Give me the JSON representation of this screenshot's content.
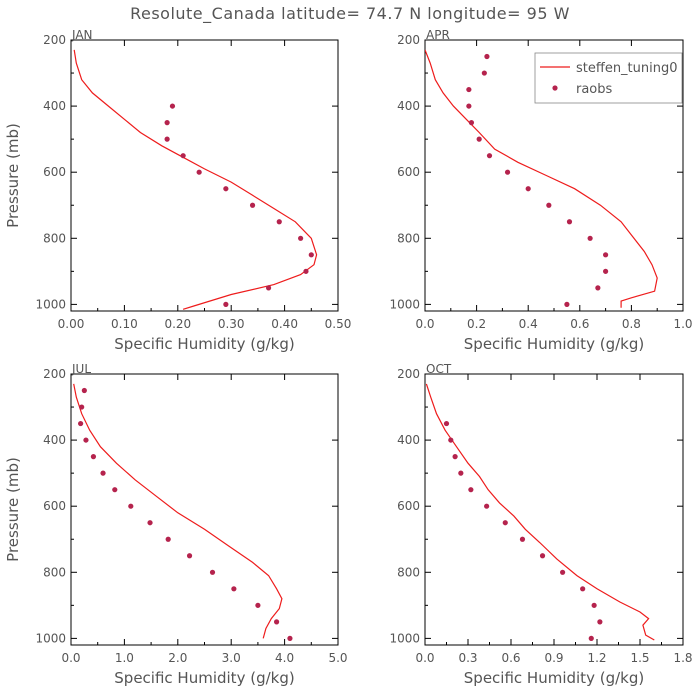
{
  "figure": {
    "title": "Resolute_Canada  latitude= 74.7 N longitude= 95 W"
  },
  "colors": {
    "model": "#ee1c1c",
    "obs": "#b5234d",
    "axis": "#000000",
    "text": "#555555"
  },
  "legend": {
    "model_label": "steffen_tuning0",
    "obs_label": "raobs",
    "placement": "top-right of APR panel"
  },
  "chart_data": [
    {
      "type": "line",
      "panel": "JAN",
      "title": "JAN",
      "xlabel": "Specific Humidity (g/kg)",
      "ylabel": "Pressure (mb)",
      "xlim": [
        0,
        0.5
      ],
      "ylim": [
        1020,
        200
      ],
      "xticks": [
        "0.00",
        "0.10",
        "0.20",
        "0.30",
        "0.40",
        "0.50"
      ],
      "xtick_values": [
        0,
        0.1,
        0.2,
        0.3,
        0.4,
        0.5
      ],
      "yticks": [
        "200",
        "400",
        "600",
        "800",
        "1000"
      ],
      "ytick_values": [
        200,
        400,
        600,
        800,
        1000
      ],
      "series": [
        {
          "name": "steffen_tuning0",
          "kind": "line",
          "x": [
            0.006,
            0.01,
            0.02,
            0.04,
            0.07,
            0.1,
            0.13,
            0.17,
            0.21,
            0.25,
            0.3,
            0.34,
            0.38,
            0.42,
            0.45,
            0.46,
            0.455,
            0.43,
            0.38,
            0.3,
            0.23,
            0.21
          ],
          "y": [
            230,
            270,
            320,
            360,
            400,
            440,
            480,
            520,
            555,
            590,
            630,
            670,
            710,
            750,
            800,
            850,
            880,
            910,
            940,
            970,
            1005,
            1015
          ]
        },
        {
          "name": "raobs",
          "kind": "scatter",
          "x": [
            0.19,
            0.18,
            0.18,
            0.21,
            0.24,
            0.29,
            0.34,
            0.39,
            0.43,
            0.45,
            0.44,
            0.37,
            0.29
          ],
          "y": [
            400,
            450,
            500,
            550,
            600,
            650,
            700,
            750,
            800,
            850,
            900,
            950,
            1000
          ]
        }
      ]
    },
    {
      "type": "line",
      "panel": "APR",
      "title": "APR",
      "xlabel": "Specific Humidity (g/kg)",
      "ylabel": "",
      "xlim": [
        0,
        1.0
      ],
      "ylim": [
        1020,
        200
      ],
      "xticks": [
        "0.0",
        "0.2",
        "0.4",
        "0.6",
        "0.8",
        "1.0"
      ],
      "xtick_values": [
        0,
        0.2,
        0.4,
        0.6,
        0.8,
        1.0
      ],
      "yticks": [
        "200",
        "400",
        "600",
        "800",
        "1000"
      ],
      "ytick_values": [
        200,
        400,
        600,
        800,
        1000
      ],
      "series": [
        {
          "name": "steffen_tuning0",
          "kind": "line",
          "x": [
            0.0,
            0.02,
            0.04,
            0.07,
            0.11,
            0.16,
            0.21,
            0.27,
            0.36,
            0.47,
            0.58,
            0.68,
            0.76,
            0.8,
            0.85,
            0.88,
            0.9,
            0.89,
            0.8,
            0.76,
            0.76
          ],
          "y": [
            230,
            270,
            320,
            360,
            400,
            440,
            480,
            530,
            570,
            610,
            650,
            700,
            750,
            790,
            840,
            880,
            920,
            960,
            980,
            990,
            1010
          ]
        },
        {
          "name": "raobs",
          "kind": "scatter",
          "x": [
            0.24,
            0.23,
            0.17,
            0.17,
            0.18,
            0.21,
            0.25,
            0.32,
            0.4,
            0.48,
            0.56,
            0.64,
            0.7,
            0.7,
            0.67,
            0.55
          ],
          "y": [
            250,
            300,
            350,
            400,
            450,
            500,
            550,
            600,
            650,
            700,
            750,
            800,
            850,
            900,
            950,
            1000
          ]
        }
      ]
    },
    {
      "type": "line",
      "panel": "JUL",
      "title": "JUL",
      "xlabel": "Specific Humidity (g/kg)",
      "ylabel": "Pressure (mb)",
      "xlim": [
        0,
        5.0
      ],
      "ylim": [
        1020,
        200
      ],
      "xticks": [
        "0.0",
        "1.0",
        "2.0",
        "3.0",
        "4.0",
        "5.0"
      ],
      "xtick_values": [
        0,
        1,
        2,
        3,
        4,
        5
      ],
      "yticks": [
        "200",
        "400",
        "600",
        "800",
        "1000"
      ],
      "ytick_values": [
        200,
        400,
        600,
        800,
        1000
      ],
      "series": [
        {
          "name": "steffen_tuning0",
          "kind": "line",
          "x": [
            0.05,
            0.1,
            0.2,
            0.35,
            0.55,
            0.85,
            1.2,
            1.6,
            2.0,
            2.5,
            2.95,
            3.4,
            3.7,
            3.85,
            3.95,
            3.9,
            3.75,
            3.65,
            3.6
          ],
          "y": [
            230,
            270,
            320,
            370,
            420,
            470,
            520,
            570,
            620,
            670,
            720,
            770,
            810,
            850,
            880,
            910,
            940,
            970,
            1000
          ]
        },
        {
          "name": "raobs",
          "kind": "scatter",
          "x": [
            0.25,
            0.2,
            0.18,
            0.28,
            0.42,
            0.6,
            0.82,
            1.12,
            1.48,
            1.82,
            2.22,
            2.65,
            3.05,
            3.5,
            3.85,
            4.1
          ],
          "y": [
            250,
            300,
            350,
            400,
            450,
            500,
            550,
            600,
            650,
            700,
            750,
            800,
            850,
            900,
            950,
            1000
          ]
        }
      ]
    },
    {
      "type": "line",
      "panel": "OCT",
      "title": "OCT",
      "xlabel": "Specific Humidity (g/kg)",
      "ylabel": "",
      "xlim": [
        0,
        1.8
      ],
      "ylim": [
        1020,
        200
      ],
      "xticks": [
        "0.0",
        "0.3",
        "0.6",
        "0.9",
        "1.2",
        "1.5",
        "1.8"
      ],
      "xtick_values": [
        0,
        0.3,
        0.6,
        0.9,
        1.2,
        1.5,
        1.8
      ],
      "yticks": [
        "200",
        "400",
        "600",
        "800",
        "1000"
      ],
      "ytick_values": [
        200,
        400,
        600,
        800,
        1000
      ],
      "series": [
        {
          "name": "steffen_tuning0",
          "kind": "line",
          "x": [
            0.01,
            0.04,
            0.08,
            0.14,
            0.22,
            0.3,
            0.38,
            0.44,
            0.52,
            0.62,
            0.7,
            0.8,
            0.92,
            1.06,
            1.2,
            1.36,
            1.5,
            1.56,
            1.52,
            1.54,
            1.6
          ],
          "y": [
            230,
            270,
            320,
            370,
            420,
            470,
            510,
            550,
            590,
            630,
            670,
            710,
            760,
            810,
            850,
            890,
            920,
            940,
            960,
            990,
            1005
          ]
        },
        {
          "name": "raobs",
          "kind": "scatter",
          "x": [
            0.15,
            0.18,
            0.21,
            0.25,
            0.32,
            0.43,
            0.56,
            0.68,
            0.82,
            0.96,
            1.1,
            1.18,
            1.22,
            1.16
          ],
          "y": [
            350,
            400,
            450,
            500,
            550,
            600,
            650,
            700,
            750,
            800,
            850,
            900,
            950,
            1000
          ]
        }
      ]
    }
  ]
}
